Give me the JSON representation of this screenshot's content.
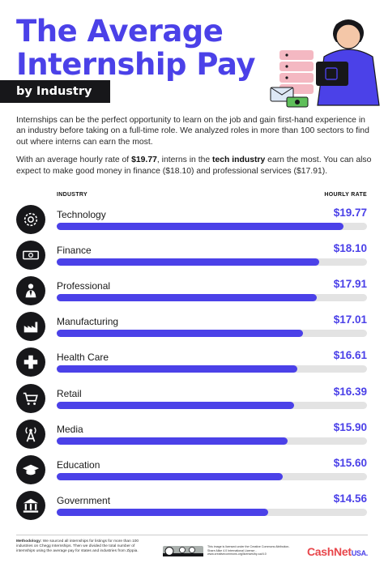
{
  "header": {
    "title_line1": "The Average",
    "title_line2": "Internship Pay",
    "subtitle": "by Industry"
  },
  "intro": {
    "paragraph1": "Internships can be the perfect opportunity to learn on the job and gain first-hand experience in an industry before taking on a full-time role. We analyzed roles in more than 100 sectors to find out where interns can earn the most.",
    "p2_a": "With an average hourly rate of ",
    "p2_rate": "$19.77",
    "p2_b": ", interns in the ",
    "p2_industry": "tech industry",
    "p2_c": " earn the most. You can also expect to make good money in finance ($18.10) and professional services ($17.91)."
  },
  "chart_data": {
    "type": "bar",
    "orientation": "horizontal",
    "column_headers": {
      "industry": "INDUSTRY",
      "rate": "HOURLY RATE"
    },
    "categories": [
      "Technology",
      "Finance",
      "Professional",
      "Manufacturing",
      "Health Care",
      "Retail",
      "Media",
      "Education",
      "Government"
    ],
    "values": [
      19.77,
      18.1,
      17.91,
      17.01,
      16.61,
      16.39,
      15.9,
      15.6,
      14.56
    ],
    "value_labels": [
      "$19.77",
      "$18.10",
      "$17.91",
      "$17.01",
      "$16.61",
      "$16.39",
      "$15.90",
      "$15.60",
      "$14.56"
    ],
    "icons": [
      "gear-chip-icon",
      "money-bill-icon",
      "person-tie-icon",
      "factory-icon",
      "medical-cross-icon",
      "shopping-cart-icon",
      "broadcast-tower-icon",
      "graduation-cap-icon",
      "government-building-icon"
    ],
    "xlim": [
      0,
      21.4
    ],
    "bar_color": "#4b41e8",
    "track_color": "#e3e3e3"
  },
  "footer": {
    "method_label": "Methodology:",
    "method_text": " We sourced all internships for listings for more than 100 industries on Chegg Internships. Then we divided the total number of internships using the average pay for states and industries from Zippia.",
    "license": "This image is licensed under the Creative Commons Attribution-Share Alike 4.0 International License - www.creativecommons.org/licenses/by-sa/4.0",
    "logo_main": "CashNet",
    "logo_suffix": "USA."
  },
  "colors": {
    "accent": "#4b41e8",
    "dark": "#17171a",
    "logo_red": "#e8464b"
  }
}
